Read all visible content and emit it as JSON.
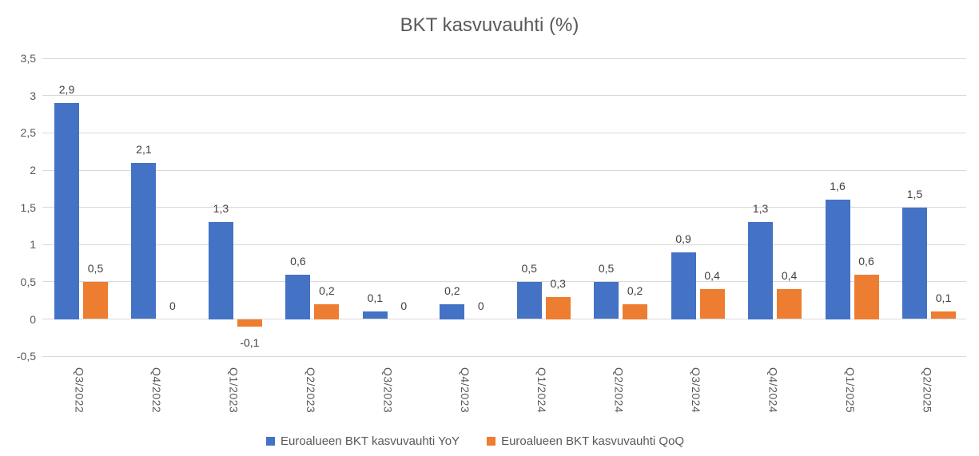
{
  "chart_data": {
    "type": "bar",
    "title": "BKT kasvuvauhti (%)",
    "categories": [
      "Q3/2022",
      "Q4/2022",
      "Q1/2023",
      "Q2/2023",
      "Q3/2023",
      "Q4/2023",
      "Q1/2024",
      "Q2/2024",
      "Q3/2024",
      "Q4/2024",
      "Q1/2025",
      "Q2/2025"
    ],
    "series": [
      {
        "name": "Euroalueen BKT kasvuvauhti YoY",
        "color": "#4472C4",
        "values": [
          2.9,
          2.1,
          1.3,
          0.6,
          0.1,
          0.2,
          0.5,
          0.5,
          0.9,
          1.3,
          1.6,
          1.5
        ],
        "labels": [
          "2,9",
          "2,1",
          "1,3",
          "0,6",
          "0,1",
          "0,2",
          "0,5",
          "0,5",
          "0,9",
          "1,3",
          "1,6",
          "1,5"
        ]
      },
      {
        "name": "Euroalueen BKT kasvuvauhti QoQ",
        "color": "#ED7D31",
        "values": [
          0.5,
          0,
          -0.1,
          0.2,
          0,
          0,
          0.3,
          0.2,
          0.4,
          0.4,
          0.6,
          0.1
        ],
        "labels": [
          "0,5",
          "0",
          "-0,1",
          "0,2",
          "0",
          "0",
          "0,3",
          "0,2",
          "0,4",
          "0,4",
          "0,6",
          "0,1"
        ]
      }
    ],
    "y_axis": {
      "tick_labels": [
        "3,5",
        "3",
        "2,5",
        "2",
        "1,5",
        "1",
        "0,5",
        "0",
        "-0,5"
      ],
      "tick_values": [
        3.5,
        3,
        2.5,
        2,
        1.5,
        1,
        0.5,
        0,
        -0.5
      ],
      "min": -0.5,
      "max": 3.5,
      "grid": true
    },
    "legend_position": "bottom",
    "decimal_separator": ",",
    "colors": {
      "series_yoy": "#4472C4",
      "series_qoq": "#ED7D31",
      "gridline": "#D9D9D9",
      "title_text": "#595959",
      "axis_text": "#595959",
      "data_label_text": "#404040"
    }
  }
}
